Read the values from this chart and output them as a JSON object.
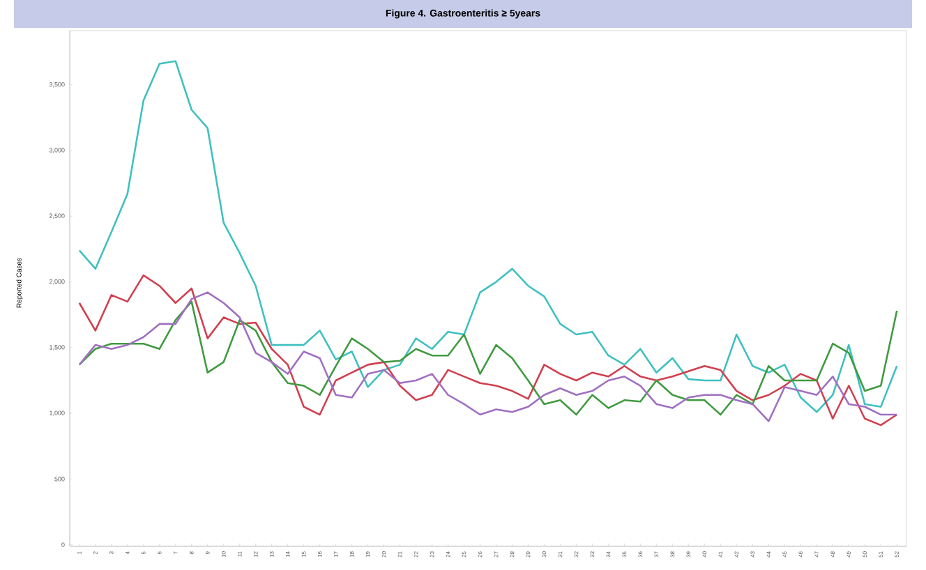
{
  "chart_data": {
    "type": "line",
    "title": "Figure 4. Gastroenteritis ≥ 5years",
    "ylabel": "Reported Cases",
    "categories": [
      "1",
      "2",
      "3",
      "4",
      "5",
      "6",
      "7",
      "8",
      "9",
      "10",
      "11",
      "12",
      "13",
      "14",
      "15",
      "16",
      "17",
      "18",
      "19",
      "20",
      "21",
      "22",
      "23",
      "24",
      "25",
      "26",
      "27",
      "28",
      "29",
      "30",
      "31",
      "32",
      "33",
      "34",
      "35",
      "36",
      "37",
      "38",
      "39",
      "40",
      "41",
      "42",
      "43",
      "44",
      "45",
      "46",
      "47",
      "48",
      "49",
      "50",
      "51",
      "52"
    ],
    "ylim": [
      0,
      3900
    ],
    "yticks": [
      {
        "value": 0,
        "label": "0"
      },
      {
        "value": 500,
        "label": "500"
      },
      {
        "value": 1000,
        "label": "1,000"
      },
      {
        "value": 1500,
        "label": "1,500"
      },
      {
        "value": 2000,
        "label": "2,000"
      },
      {
        "value": 2500,
        "label": "2,500"
      },
      {
        "value": 3000,
        "label": "3,000"
      },
      {
        "value": 3500,
        "label": "3,500"
      }
    ],
    "series": [
      {
        "color": "#40c0c0",
        "values": [
          2240,
          2100,
          2380,
          2670,
          3380,
          3660,
          3680,
          3310,
          3170,
          2450,
          2220,
          1970,
          1520,
          1520,
          1520,
          1630,
          1410,
          1470,
          1200,
          1330,
          1370,
          1570,
          1490,
          1620,
          1600,
          1920,
          2000,
          2100,
          1970,
          1890,
          1680,
          1600,
          1620,
          1440,
          1370,
          1490,
          1310,
          1420,
          1260,
          1250,
          1250,
          1600,
          1360,
          1310,
          1370,
          1120,
          1010,
          1140,
          1520,
          1070,
          1050,
          1360
        ]
      },
      {
        "color": "#d04050",
        "values": [
          1840,
          1630,
          1900,
          1850,
          2050,
          1970,
          1840,
          1950,
          1570,
          1730,
          1680,
          1690,
          1490,
          1370,
          1050,
          990,
          1250,
          1310,
          1370,
          1390,
          1210,
          1100,
          1140,
          1330,
          1280,
          1230,
          1210,
          1170,
          1110,
          1370,
          1300,
          1250,
          1310,
          1280,
          1360,
          1280,
          1250,
          1280,
          1320,
          1360,
          1330,
          1170,
          1100,
          1140,
          1210,
          1300,
          1250,
          960,
          1210,
          960,
          910,
          990
        ]
      },
      {
        "color": "#409a40",
        "values": [
          1370,
          1490,
          1530,
          1530,
          1530,
          1490,
          1710,
          1850,
          1310,
          1390,
          1710,
          1630,
          1390,
          1230,
          1210,
          1140,
          1360,
          1570,
          1490,
          1390,
          1400,
          1490,
          1440,
          1440,
          1600,
          1300,
          1520,
          1420,
          1250,
          1070,
          1100,
          990,
          1140,
          1040,
          1100,
          1090,
          1250,
          1140,
          1100,
          1100,
          990,
          1140,
          1070,
          1360,
          1250,
          1250,
          1250,
          1530,
          1460,
          1170,
          1210,
          1780
        ]
      },
      {
        "color": "#a070c0",
        "values": [
          1370,
          1520,
          1490,
          1520,
          1580,
          1680,
          1680,
          1870,
          1920,
          1840,
          1730,
          1460,
          1390,
          1300,
          1470,
          1420,
          1140,
          1120,
          1300,
          1330,
          1230,
          1250,
          1300,
          1140,
          1070,
          990,
          1030,
          1010,
          1050,
          1140,
          1190,
          1140,
          1170,
          1250,
          1280,
          1210,
          1070,
          1040,
          1120,
          1140,
          1140,
          1100,
          1070,
          940,
          1200,
          1170,
          1140,
          1280,
          1070,
          1050,
          990,
          990
        ]
      }
    ]
  }
}
